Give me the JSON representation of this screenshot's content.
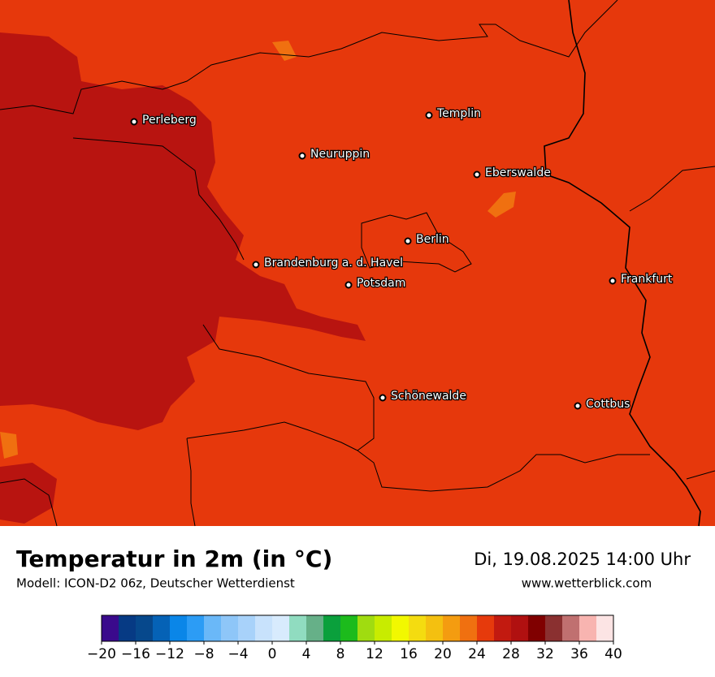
{
  "map": {
    "cities": [
      "Perleberg",
      "Templin",
      "Neuruppin",
      "Eberswalde",
      "Berlin",
      "Brandenburg a. d. Havel",
      "Potsdam",
      "Frankfurt",
      "Schönewalde",
      "Cottbus"
    ]
  },
  "footer": {
    "title": "Temperatur in 2m (in °C)",
    "subtitle": "Modell: ICON-D2 06z, Deutscher Wetterdienst",
    "date": "Di, 19.08.2025 14:00 Uhr",
    "website": "www.wetterblick.com"
  },
  "colorbar": {
    "range": [
      -20,
      40
    ],
    "colors": [
      "#3a0a8c",
      "#063a84",
      "#06488c",
      "#0562b6",
      "#0a86e8",
      "#2c9cf5",
      "#6ab8f8",
      "#8ec6f8",
      "#a8d2fa",
      "#c8e2fc",
      "#d8ebfd",
      "#90dcc0",
      "#66b088",
      "#0aa03c",
      "#1cbb1c",
      "#a0dc10",
      "#c8ec00",
      "#f2f800",
      "#f4dc10",
      "#f4c010",
      "#f49c10",
      "#f07010",
      "#e63a0c",
      "#c21a10",
      "#b01010",
      "#800000",
      "#8a3030",
      "#c07070",
      "#f8b4b0",
      "#fce4e4"
    ],
    "ticks": [
      {
        "value": -20,
        "label": "−20"
      },
      {
        "value": -16,
        "label": "−16"
      },
      {
        "value": -12,
        "label": "−12"
      },
      {
        "value": -8,
        "label": "−8"
      },
      {
        "value": -4,
        "label": "−4"
      },
      0,
      4,
      8,
      12,
      16,
      20,
      24,
      28,
      32,
      36,
      40
    ]
  }
}
